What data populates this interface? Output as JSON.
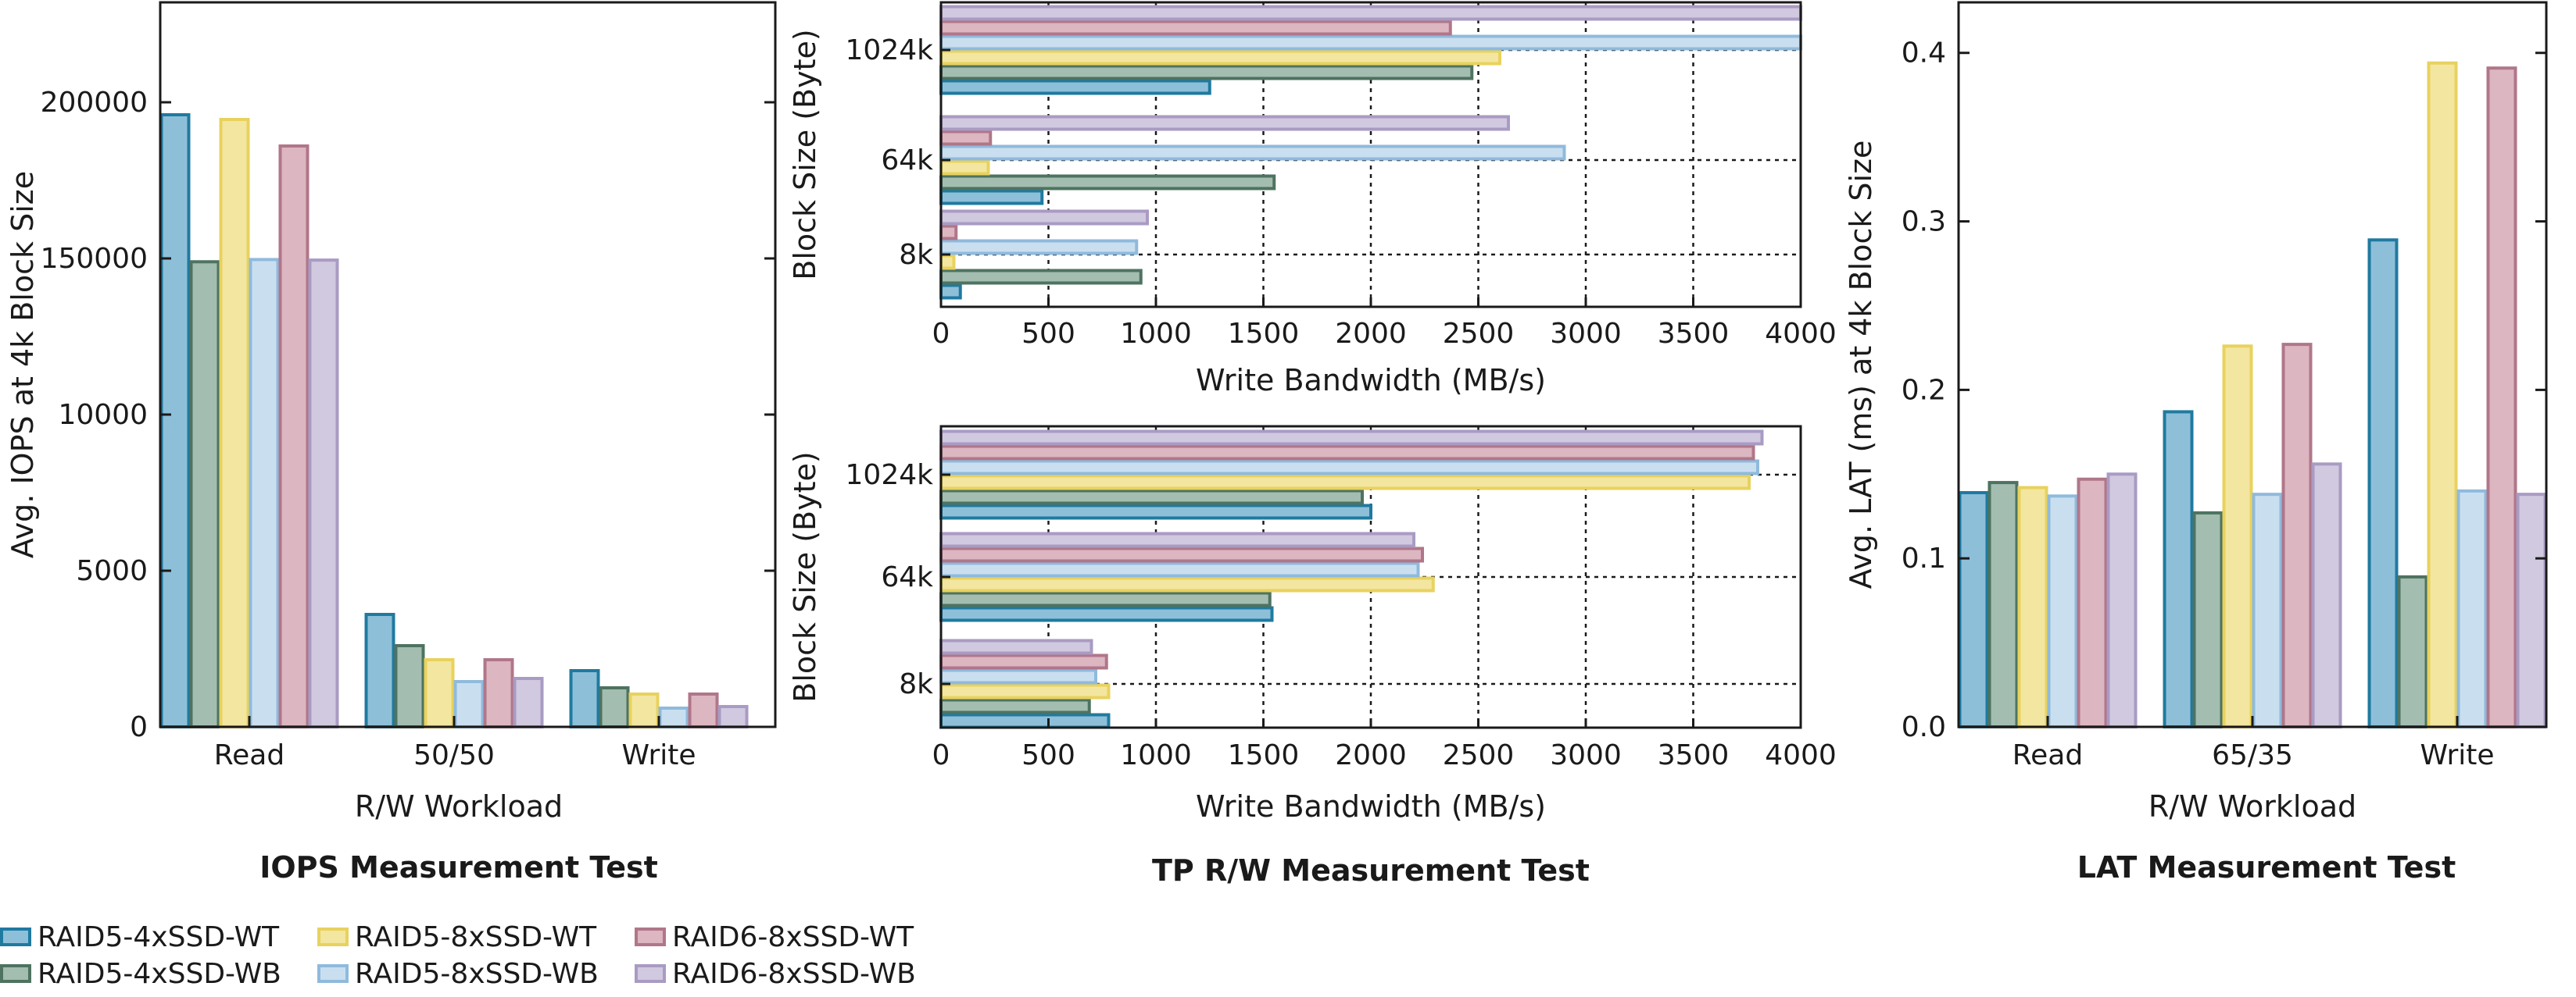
{
  "series_names": [
    "RAID5-4xSSD-WT",
    "RAID5-4xSSD-WB",
    "RAID5-8xSSD-WT",
    "RAID5-8xSSD-WB",
    "RAID6-8xSSD-WT",
    "RAID6-8xSSD-WB"
  ],
  "series_colors": {
    "fill": [
      "#8ebfd9",
      "#a3bdb1",
      "#f3e6a0",
      "#c9dff0",
      "#dcb6c0",
      "#d1c9df"
    ],
    "stroke": [
      "#1f7aa0",
      "#4e7360",
      "#e8d25e",
      "#8fbadc",
      "#b0768a",
      "#a99bc3"
    ]
  },
  "chart_data": [
    {
      "id": "iops",
      "type": "bar",
      "title": "IOPS Measurement Test",
      "xlabel": "R/W Workload",
      "ylabel": "Avg. IOPS at 4k Block Size",
      "categories": [
        "Read",
        "50/50",
        "Write"
      ],
      "y_ticks": [
        0,
        5000,
        10000,
        150000,
        200000
      ],
      "y_tick_labels": [
        "0",
        "5000",
        "10000",
        "150000",
        "200000"
      ],
      "series": [
        {
          "name": "RAID5-4xSSD-WT",
          "values": [
            196000,
            3600,
            1800
          ]
        },
        {
          "name": "RAID5-4xSSD-WB",
          "values": [
            147000,
            2600,
            1250
          ]
        },
        {
          "name": "RAID5-8xSSD-WT",
          "values": [
            194500,
            2150,
            1050
          ]
        },
        {
          "name": "RAID5-8xSSD-WB",
          "values": [
            149000,
            1450,
            600
          ]
        },
        {
          "name": "RAID6-8xSSD-WT",
          "values": [
            186000,
            2150,
            1050
          ]
        },
        {
          "name": "RAID6-8xSSD-WB",
          "values": [
            148500,
            1550,
            650
          ]
        }
      ]
    },
    {
      "id": "write",
      "type": "bar",
      "orientation": "horizontal",
      "title": "",
      "xlabel": "Write Bandwidth (MB/s)",
      "ylabel": "Block Size (Byte)",
      "categories": [
        "8k",
        "64k",
        "1024k"
      ],
      "xlim": [
        0,
        4000
      ],
      "x_ticks": [
        0,
        500,
        1000,
        1500,
        2000,
        2500,
        3000,
        3500,
        4000
      ],
      "series": [
        {
          "name": "RAID5-4xSSD-WT",
          "values": [
            90,
            470,
            1250
          ]
        },
        {
          "name": "RAID5-4xSSD-WB",
          "values": [
            930,
            1550,
            2470
          ]
        },
        {
          "name": "RAID5-8xSSD-WT",
          "values": [
            60,
            220,
            2600
          ]
        },
        {
          "name": "RAID5-8xSSD-WB",
          "values": [
            910,
            2900,
            4000
          ]
        },
        {
          "name": "RAID6-8xSSD-WT",
          "values": [
            70,
            230,
            2370
          ]
        },
        {
          "name": "RAID6-8xSSD-WB",
          "values": [
            960,
            2640,
            4000
          ]
        }
      ]
    },
    {
      "id": "tp",
      "type": "bar",
      "orientation": "horizontal",
      "title": "TP R/W Measurement Test",
      "xlabel": "Write Bandwidth (MB/s)",
      "ylabel": "Block Size (Byte)",
      "categories": [
        "8k",
        "64k",
        "1024k"
      ],
      "xlim": [
        0,
        4000
      ],
      "x_ticks": [
        0,
        500,
        1000,
        1500,
        2000,
        2500,
        3000,
        3500,
        4000
      ],
      "series": [
        {
          "name": "RAID5-4xSSD-WT",
          "values": [
            780,
            1540,
            2000
          ]
        },
        {
          "name": "RAID5-4xSSD-WB",
          "values": [
            690,
            1530,
            1960
          ]
        },
        {
          "name": "RAID5-8xSSD-WT",
          "values": [
            780,
            2290,
            3760
          ]
        },
        {
          "name": "RAID5-8xSSD-WB",
          "values": [
            720,
            2220,
            3800
          ]
        },
        {
          "name": "RAID6-8xSSD-WT",
          "values": [
            770,
            2240,
            3780
          ]
        },
        {
          "name": "RAID6-8xSSD-WB",
          "values": [
            700,
            2200,
            3820
          ]
        }
      ]
    },
    {
      "id": "lat",
      "type": "bar",
      "title": "LAT Measurement Test",
      "xlabel": "R/W Workload",
      "ylabel": "Avg. LAT (ms) at 4k Block Size",
      "categories": [
        "Read",
        "65/35",
        "Write"
      ],
      "ylim": [
        0,
        0.43
      ],
      "y_ticks": [
        0,
        0.1,
        0.2,
        0.3,
        0.4
      ],
      "y_tick_labels": [
        "0.0",
        "0.1",
        "0.2",
        "0.3",
        "0.4"
      ],
      "series": [
        {
          "name": "RAID5-4xSSD-WT",
          "values": [
            0.139,
            0.187,
            0.289
          ]
        },
        {
          "name": "RAID5-4xSSD-WB",
          "values": [
            0.145,
            0.127,
            0.089
          ]
        },
        {
          "name": "RAID5-8xSSD-WT",
          "values": [
            0.142,
            0.226,
            0.394
          ]
        },
        {
          "name": "RAID5-8xSSD-WB",
          "values": [
            0.137,
            0.138,
            0.14
          ]
        },
        {
          "name": "RAID6-8xSSD-WT",
          "values": [
            0.147,
            0.227,
            0.391
          ]
        },
        {
          "name": "RAID6-8xSSD-WB",
          "values": [
            0.15,
            0.156,
            0.138
          ]
        }
      ]
    }
  ]
}
